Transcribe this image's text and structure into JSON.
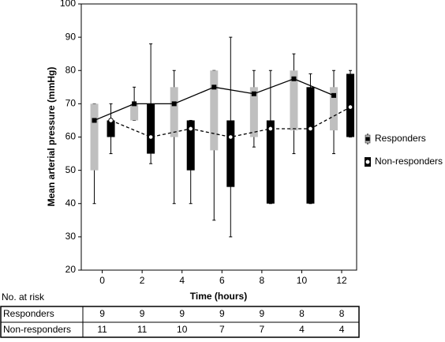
{
  "chart_data": {
    "type": "boxplot",
    "y_label": "Mean arterial pressure (mmHg)",
    "x_label": "Time (hours)",
    "x": [
      0,
      2,
      4,
      6,
      8,
      10,
      12
    ],
    "xlim": [
      -1.05,
      12.75
    ],
    "xticks": [
      0,
      2,
      4,
      6,
      8,
      10,
      12
    ],
    "ylim": [
      20,
      100
    ],
    "yticks": [
      20,
      30,
      40,
      50,
      60,
      70,
      80,
      90,
      100
    ],
    "series": [
      {
        "name": "Responders",
        "color": "#bfbfbf",
        "line_style": "solid",
        "min": [
          40,
          65,
          40,
          35,
          57,
          55,
          55
        ],
        "q1": [
          50,
          65,
          60,
          56,
          60,
          62,
          62
        ],
        "median": [
          65,
          70,
          70,
          75,
          73,
          77.5,
          72.5
        ],
        "q3": [
          70,
          70,
          75,
          80,
          75,
          80,
          75
        ],
        "max": [
          70,
          75,
          80,
          80,
          80,
          85,
          80
        ]
      },
      {
        "name": "Non-responders",
        "color": "#000000",
        "line_style": "dashed",
        "min": [
          55,
          52,
          40,
          30,
          40,
          40,
          60
        ],
        "q1": [
          60,
          55,
          50,
          45,
          40,
          40,
          60
        ],
        "median": [
          65,
          60,
          62.5,
          60,
          62.5,
          62.5,
          69
        ],
        "q3": [
          65,
          70,
          65,
          65,
          65,
          75,
          79
        ],
        "max": [
          70,
          88,
          65,
          90,
          80,
          79,
          80
        ]
      }
    ],
    "risk_table": {
      "title": "No. at risk",
      "rows": [
        {
          "name": "Responders",
          "values": [
            9,
            9,
            9,
            9,
            9,
            8,
            8
          ]
        },
        {
          "name": "Non-responders",
          "values": [
            11,
            11,
            10,
            7,
            7,
            4,
            4
          ]
        }
      ]
    }
  }
}
